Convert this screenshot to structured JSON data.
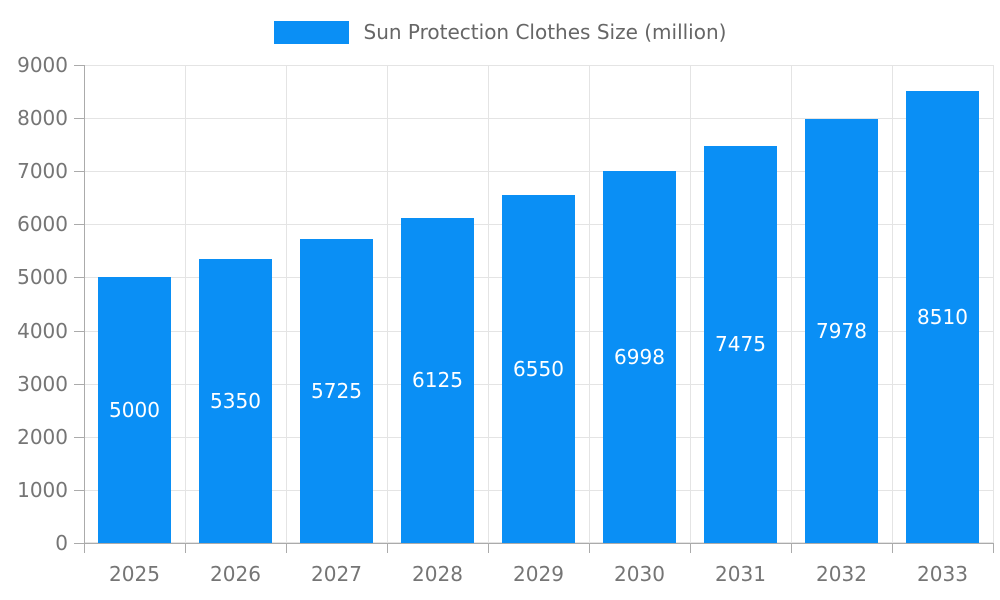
{
  "chart_data": {
    "type": "bar",
    "title": "",
    "legend": {
      "label": "Sun Protection Clothes Size (million)",
      "position": "top"
    },
    "categories": [
      "2025",
      "2026",
      "2027",
      "2028",
      "2029",
      "2030",
      "2031",
      "2032",
      "2033"
    ],
    "series": [
      {
        "name": "Sun Protection Clothes Size (million)",
        "values": [
          5000,
          5350,
          5725,
          6125,
          6550,
          6998,
          7475,
          7978,
          8510
        ]
      }
    ],
    "xlabel": "",
    "ylabel": "",
    "ylim": [
      0,
      9000
    ],
    "yticks": [
      0,
      1000,
      2000,
      3000,
      4000,
      5000,
      6000,
      7000,
      8000,
      9000
    ],
    "grid": true,
    "bar_labels_inside": true,
    "colors": {
      "bar": "#0A8FF5",
      "bar_label_text": "#FFFFFF",
      "gridline": "#E4E4E4",
      "axis_line": "#ABABAB",
      "tick_label_text": "#757575",
      "legend_text": "#666666",
      "background": "#FFFFFF"
    }
  }
}
